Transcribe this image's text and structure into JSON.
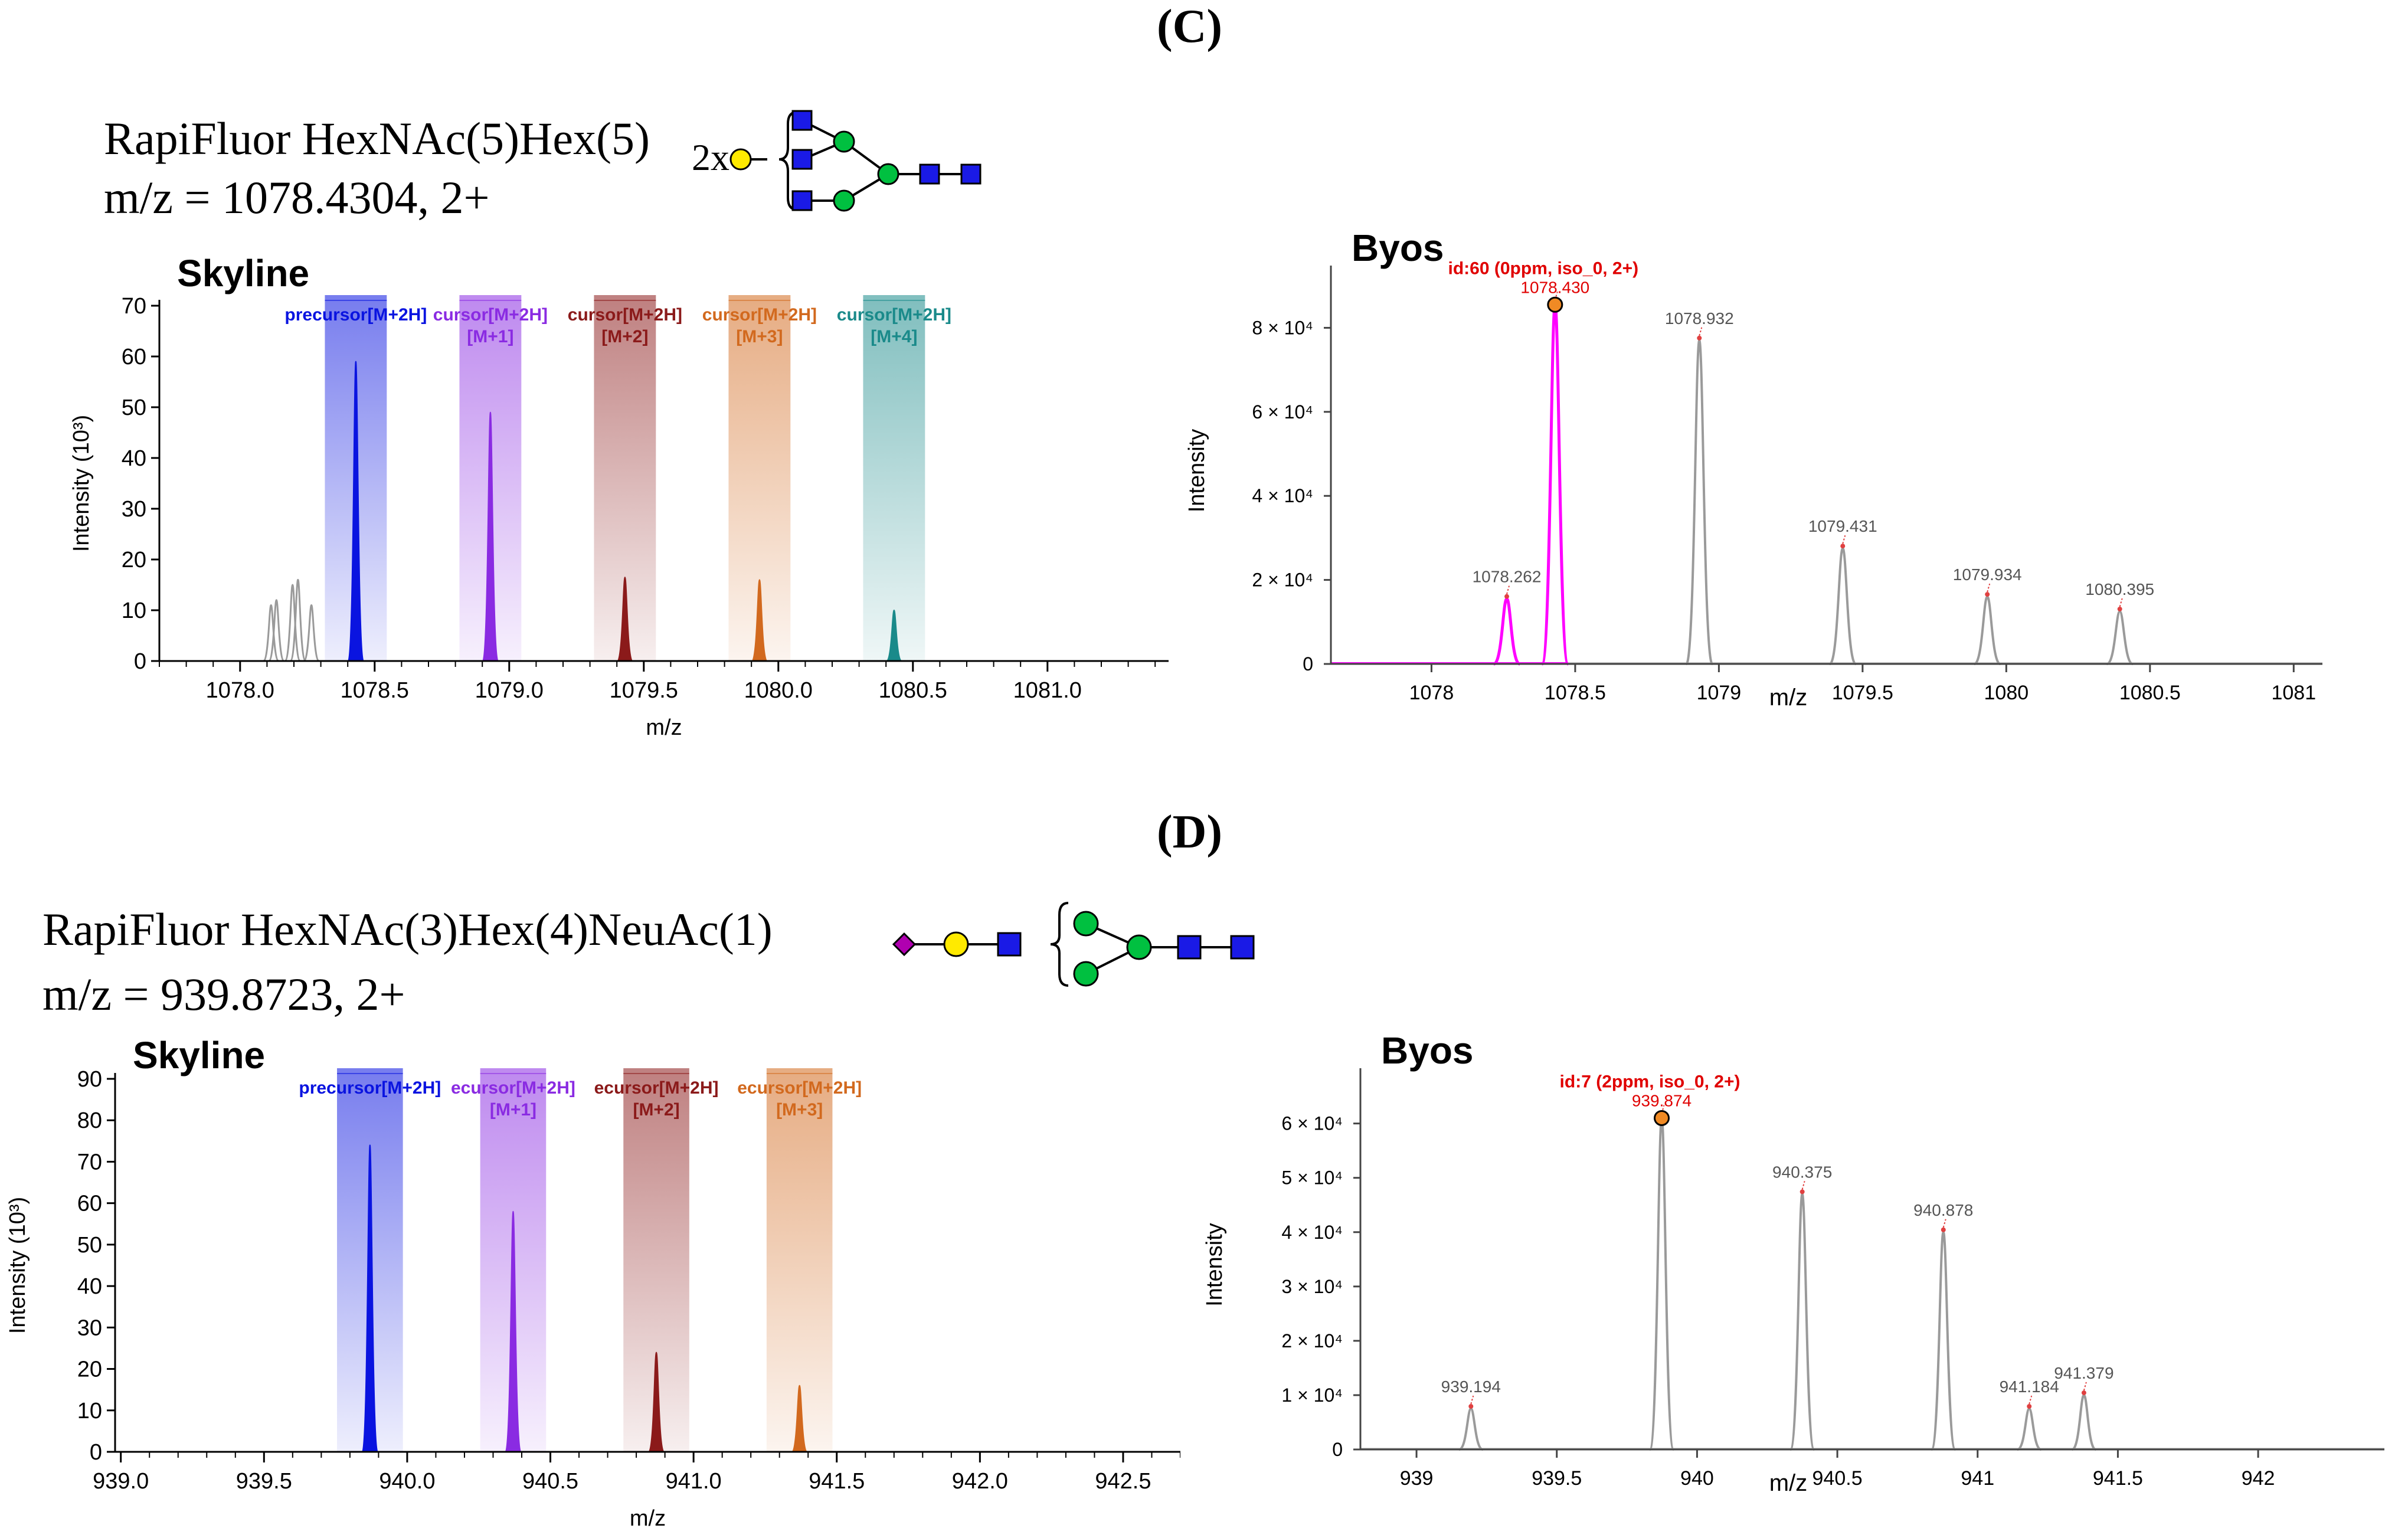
{
  "panels": [
    {
      "label": "(C)",
      "glycan_name": "RapiFluor HexNAc(5)Hex(5)",
      "mz_line": "m/z = 1078.4304, 2+",
      "glycan_multiplier": "2x"
    },
    {
      "label": "(D)",
      "glycan_name": "RapiFluor HexNAc(3)Hex(4)NeuAc(1)",
      "mz_line": "m/z = 939.8723, 2+",
      "glycan_multiplier": ""
    }
  ],
  "colors": {
    "m0": "#0a14e0",
    "m1": "#8a2be2",
    "m2": "#8b1a1a",
    "m3": "#d2691e",
    "m4": "#1a8a8a",
    "byos_highlight": "#ff00ff",
    "byos_label": "#e00000",
    "grey_trace": "#9a9a9a"
  },
  "chart_data": [
    {
      "id": "skyline_c",
      "type": "line",
      "title": "Skyline",
      "xlabel": "m/z",
      "ylabel": "Intensity (10³)",
      "xlim": [
        1077.7,
        1081.45
      ],
      "ylim": [
        0,
        70
      ],
      "xticks": [
        1078.0,
        1078.5,
        1079.0,
        1079.5,
        1080.0,
        1080.5,
        1081.0
      ],
      "xtick_labels": [
        "1078.0",
        "1078.5",
        "1079.0",
        "1079.5",
        "1080.0",
        "1080.5",
        "1081.0"
      ],
      "yticks": [
        0,
        10,
        20,
        30,
        40,
        50,
        60,
        70
      ],
      "isotope_windows": [
        {
          "center": 1078.43,
          "label": "precursor[M+2H]",
          "sub": "",
          "color_key": "m0"
        },
        {
          "center": 1078.93,
          "label": "cursor[M+2H]",
          "sub": "[M+1]",
          "color_key": "m1"
        },
        {
          "center": 1079.43,
          "label": "cursor[M+2H]",
          "sub": "[M+2]",
          "color_key": "m2"
        },
        {
          "center": 1079.93,
          "label": "cursor[M+2H]",
          "sub": "[M+3]",
          "color_key": "m3"
        },
        {
          "center": 1080.43,
          "label": "cursor[M+2H]",
          "sub": "[M+4]",
          "color_key": "m4"
        }
      ],
      "peaks": [
        {
          "x": 1078.115,
          "y": 11,
          "color_key": "grey_trace",
          "filled": false
        },
        {
          "x": 1078.135,
          "y": 12,
          "color_key": "grey_trace",
          "filled": false
        },
        {
          "x": 1078.195,
          "y": 15,
          "color_key": "grey_trace",
          "filled": false
        },
        {
          "x": 1078.215,
          "y": 16,
          "color_key": "grey_trace",
          "filled": false
        },
        {
          "x": 1078.265,
          "y": 11,
          "color_key": "grey_trace",
          "filled": false
        },
        {
          "x": 1078.43,
          "y": 59,
          "color_key": "m0",
          "filled": true
        },
        {
          "x": 1078.93,
          "y": 49,
          "color_key": "m1",
          "filled": true
        },
        {
          "x": 1079.43,
          "y": 16.5,
          "color_key": "m2",
          "filled": true
        },
        {
          "x": 1079.93,
          "y": 16,
          "color_key": "m3",
          "filled": true
        },
        {
          "x": 1080.43,
          "y": 10,
          "color_key": "m4",
          "filled": true
        }
      ]
    },
    {
      "id": "byos_c",
      "type": "line",
      "title": "Byos",
      "xlabel": "m/z",
      "ylabel": "Intensity",
      "xlim": [
        1077.65,
        1081.1
      ],
      "ylim": [
        0,
        92000
      ],
      "xticks": [
        1078,
        1078.5,
        1079,
        1079.5,
        1080,
        1080.5,
        1081
      ],
      "xtick_labels": [
        "1078",
        "1078.5",
        "1079",
        "1079.5",
        "1080",
        "1080.5",
        "1081"
      ],
      "yticks": [
        0,
        20000,
        40000,
        60000,
        80000
      ],
      "ytick_labels": [
        "0",
        "2 × 10⁴",
        "4 × 10⁴",
        "6 × 10⁴",
        "8 × 10⁴"
      ],
      "id_label": "id:60 (0ppm, iso_0, 2+)",
      "peaks": [
        {
          "x": 1078.262,
          "y": 15500,
          "label": "1078.262",
          "highlight": true,
          "apex_marker": false
        },
        {
          "x": 1078.43,
          "y": 85500,
          "label": "1078.430",
          "highlight": true,
          "apex_marker": true
        },
        {
          "x": 1078.932,
          "y": 77000,
          "label": "1078.932",
          "highlight": false,
          "apex_marker": false
        },
        {
          "x": 1079.431,
          "y": 27500,
          "label": "1079.431",
          "highlight": false,
          "apex_marker": false
        },
        {
          "x": 1079.934,
          "y": 16000,
          "label": "1079.934",
          "highlight": false,
          "apex_marker": false
        },
        {
          "x": 1080.395,
          "y": 12500,
          "label": "1080.395",
          "highlight": false,
          "apex_marker": false
        }
      ]
    },
    {
      "id": "skyline_d",
      "type": "line",
      "title": "Skyline",
      "xlabel": "m/z",
      "ylabel": "Intensity (10³)",
      "xlim": [
        938.98,
        942.7
      ],
      "ylim": [
        0,
        90
      ],
      "xticks": [
        939.0,
        939.5,
        940.0,
        940.5,
        941.0,
        941.5,
        942.0,
        942.5
      ],
      "xtick_labels": [
        "939.0",
        "939.5",
        "940.0",
        "940.5",
        "941.0",
        "941.5",
        "942.0",
        "942.5"
      ],
      "yticks": [
        0,
        10,
        20,
        30,
        40,
        50,
        60,
        70,
        80,
        90
      ],
      "isotope_windows": [
        {
          "center": 939.87,
          "label": "precursor[M+2H]",
          "sub": "",
          "color_key": "m0"
        },
        {
          "center": 940.37,
          "label": "ecursor[M+2H]",
          "sub": "[M+1]",
          "color_key": "m1"
        },
        {
          "center": 940.87,
          "label": "ecursor[M+2H]",
          "sub": "[M+2]",
          "color_key": "m2"
        },
        {
          "center": 941.37,
          "label": "ecursor[M+2H]",
          "sub": "[M+3]",
          "color_key": "m3"
        }
      ],
      "peaks": [
        {
          "x": 939.87,
          "y": 74,
          "color_key": "m0",
          "filled": true
        },
        {
          "x": 940.37,
          "y": 58,
          "color_key": "m1",
          "filled": true
        },
        {
          "x": 940.87,
          "y": 24,
          "color_key": "m2",
          "filled": true
        },
        {
          "x": 941.37,
          "y": 16,
          "color_key": "m3",
          "filled": true
        }
      ]
    },
    {
      "id": "byos_d",
      "type": "line",
      "title": "Byos",
      "xlabel": "m/z",
      "ylabel": "Intensity",
      "xlim": [
        938.8,
        942.45
      ],
      "ylim": [
        0,
        68000
      ],
      "xticks": [
        939,
        939.5,
        940,
        940.5,
        941,
        941.5,
        942
      ],
      "xtick_labels": [
        "939",
        "939.5",
        "940",
        "940.5",
        "941",
        "941.5",
        "942"
      ],
      "yticks": [
        0,
        10000,
        20000,
        30000,
        40000,
        50000,
        60000
      ],
      "ytick_labels": [
        "0",
        "1 × 10⁴",
        "2 × 10⁴",
        "3 × 10⁴",
        "4 × 10⁴",
        "5 × 10⁴",
        "6 × 10⁴"
      ],
      "id_label": "id:7 (2ppm, iso_0, 2+)",
      "peaks": [
        {
          "x": 939.194,
          "y": 7500,
          "label": "939.194",
          "highlight": false,
          "apex_marker": false
        },
        {
          "x": 939.874,
          "y": 61000,
          "label": "939.874",
          "highlight": false,
          "apex_marker": true
        },
        {
          "x": 940.375,
          "y": 47000,
          "label": "940.375",
          "highlight": false,
          "apex_marker": false
        },
        {
          "x": 940.878,
          "y": 40000,
          "label": "940.878",
          "highlight": false,
          "apex_marker": false
        },
        {
          "x": 941.184,
          "y": 7500,
          "label": "941.184",
          "highlight": false,
          "apex_marker": false
        },
        {
          "x": 941.379,
          "y": 10000,
          "label": "941.379",
          "highlight": false,
          "apex_marker": false
        }
      ]
    }
  ]
}
